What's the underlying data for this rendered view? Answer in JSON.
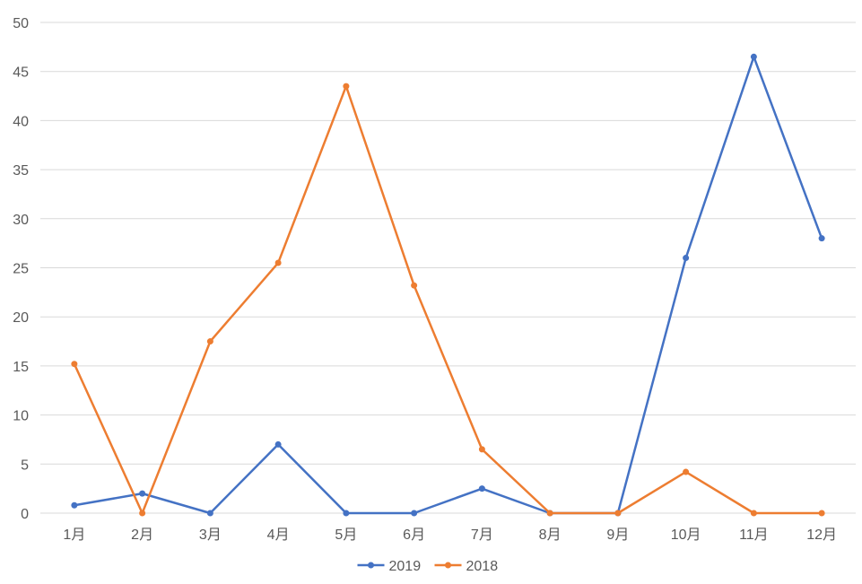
{
  "chart_data": {
    "type": "line",
    "title": "",
    "xlabel": "",
    "ylabel": "",
    "ylim": [
      0,
      50
    ],
    "yticks": [
      0,
      5,
      10,
      15,
      20,
      25,
      30,
      35,
      40,
      45,
      50
    ],
    "grid": true,
    "legend_position": "bottom-center",
    "categories": [
      "1月",
      "2月",
      "3月",
      "4月",
      "5月",
      "6月",
      "7月",
      "8月",
      "9月",
      "10月",
      "11月",
      "12月"
    ],
    "series": [
      {
        "name": "2019",
        "color": "#4472c4",
        "values": [
          0.8,
          2.0,
          0.0,
          7.0,
          0.0,
          0.0,
          2.5,
          0.0,
          0.0,
          26.0,
          46.5,
          28.0
        ]
      },
      {
        "name": "2018",
        "color": "#ed7d31",
        "values": [
          15.2,
          0.0,
          17.5,
          25.5,
          43.5,
          23.2,
          6.5,
          0.0,
          0.0,
          4.2,
          0.0,
          0.0
        ]
      }
    ]
  }
}
